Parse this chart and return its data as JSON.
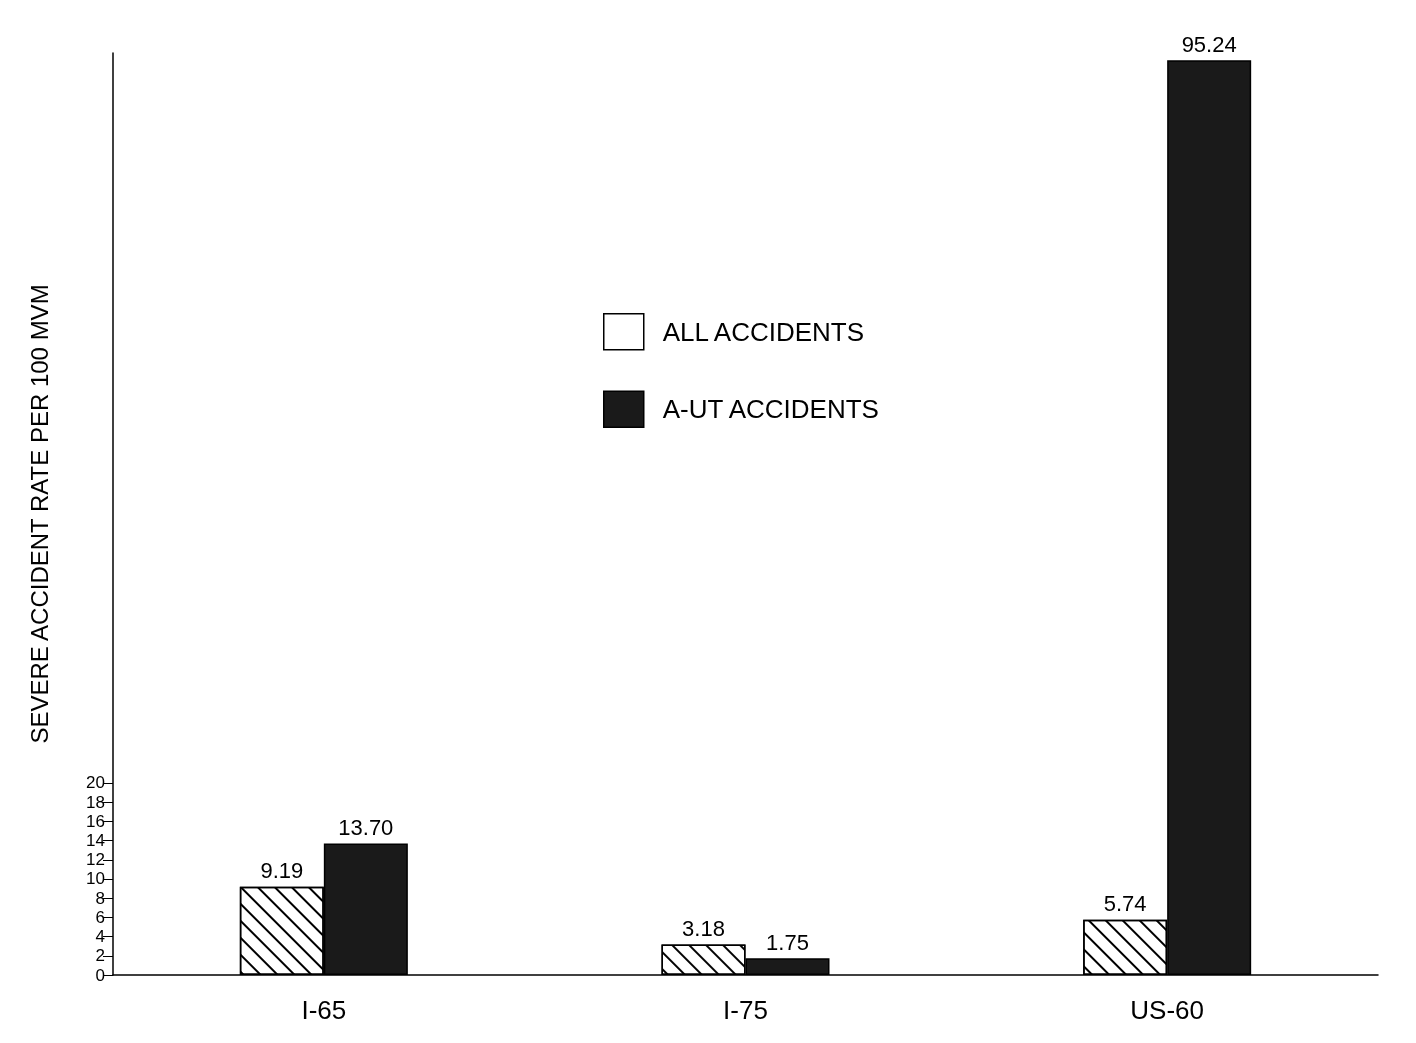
{
  "chart_data": {
    "type": "bar",
    "ylabel": "SEVERE ACCIDENT RATE PER 100 MVM",
    "categories": [
      "I-65",
      "I-75",
      "US-60"
    ],
    "series": [
      {
        "name": "ALL ACCIDENTS",
        "color": "#ffffff",
        "values": [
          9.19,
          3.18,
          5.74
        ],
        "value_labels": [
          "9.19",
          "3.18",
          "5.74"
        ]
      },
      {
        "name": "A-UT ACCIDENTS",
        "color": "#1a1a1a",
        "values": [
          13.7,
          1.75,
          95.24
        ],
        "value_labels": [
          "13.70",
          "1.75",
          "95.24"
        ]
      }
    ],
    "ylim": [
      0,
      96
    ],
    "yticks": [
      0,
      2,
      4,
      6,
      8,
      10,
      12,
      14,
      16,
      18,
      20
    ],
    "grid": false,
    "legend": "top"
  }
}
